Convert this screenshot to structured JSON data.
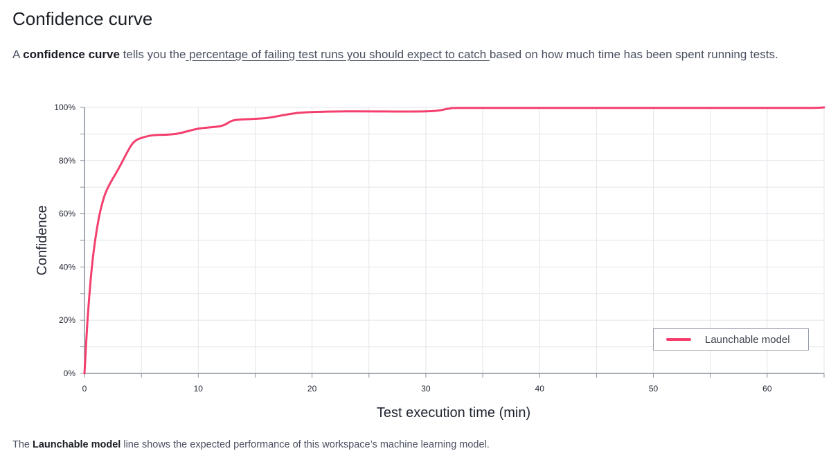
{
  "page": {
    "title": "Confidence curve",
    "intro": {
      "prefix": "A ",
      "term": "confidence curve",
      "mid": " tells you the",
      "link": " percentage of failing test runs you should expect to catch ",
      "suffix": "based on how much time has been spent running tests."
    },
    "footer": {
      "prefix": "The ",
      "term": "Launchable model",
      "suffix": " line shows the expected performance of this workspace’s machine learning model."
    }
  },
  "colors": {
    "line": "#f43f6e",
    "grid": "#e3e5ea",
    "axis": "#8a909c",
    "text": "#1f2430"
  },
  "chart_data": {
    "type": "line",
    "title": "",
    "xlabel": "Test execution time (min)",
    "ylabel": "Confidence",
    "xlim": [
      0,
      65
    ],
    "ylim": [
      0,
      100
    ],
    "x_ticks": [
      0,
      10,
      20,
      30,
      40,
      50,
      60
    ],
    "y_ticks": [
      0,
      20,
      40,
      60,
      80,
      100
    ],
    "y_tick_labels": [
      "0%",
      "20%",
      "40%",
      "60%",
      "80%",
      "100%"
    ],
    "grid": true,
    "legend_position": "bottom-right",
    "series": [
      {
        "name": "Launchable model",
        "x": [
          0,
          0.3,
          0.7,
          1.2,
          1.7,
          2.2,
          3.0,
          4.0,
          4.5,
          5.0,
          6.0,
          8.0,
          10.0,
          12.0,
          13.0,
          14.0,
          16.0,
          19.0,
          23.0,
          30.0,
          32.0,
          33.0,
          40.0,
          50.0,
          60.0,
          64.0,
          65.0
        ],
        "y": [
          0,
          22,
          42,
          57,
          66,
          71,
          77,
          85,
          87.5,
          88.5,
          89.5,
          90,
          92,
          93,
          95,
          95.5,
          96,
          98,
          98.5,
          98.5,
          99.5,
          99.8,
          99.8,
          99.8,
          99.8,
          99.8,
          100
        ]
      }
    ]
  }
}
